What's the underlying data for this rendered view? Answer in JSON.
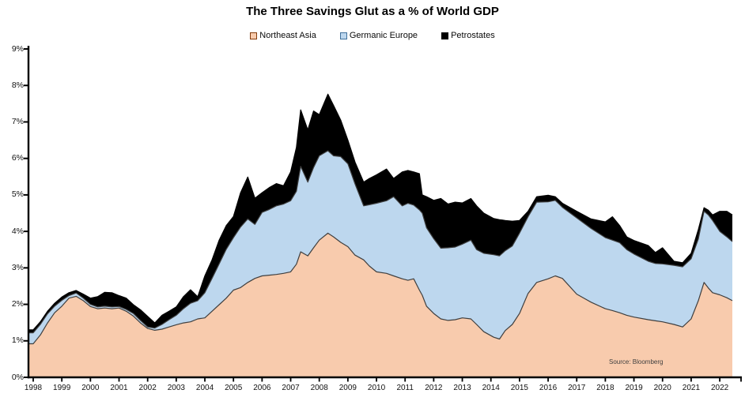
{
  "title": "The Three Savings Glut as a % of World GDP",
  "source_note": "Source: Bloomberg",
  "colors": {
    "background": "#ffffff",
    "axis": "#000000",
    "northeast_asia_fill": "#F8CBAD",
    "northeast_asia_border": "#843C0C",
    "germanic_europe_fill": "#BDD7EE",
    "germanic_europe_border": "#41719C",
    "petrostates_fill": "#000000",
    "area_outline": "#3f3f3f"
  },
  "axes": {
    "y_tick_labels": [
      "0%",
      "1%",
      "2%",
      "3%",
      "4%",
      "5%",
      "6%",
      "7%",
      "8%",
      "9%"
    ],
    "x_tick_years": [
      "1998",
      "1999",
      "2000",
      "2001",
      "2002",
      "2003",
      "2004",
      "2005",
      "2006",
      "2007",
      "2008",
      "2009",
      "2010",
      "2011",
      "2012",
      "2013",
      "2014",
      "2015",
      "2016",
      "2017",
      "2018",
      "2019",
      "2020",
      "2021",
      "2022"
    ]
  },
  "chart_data": {
    "type": "area",
    "stacked": true,
    "title": "The Three Savings Glut as a % of World GDP",
    "xlabel": "",
    "ylabel": "% of World GDP",
    "ylim": [
      0,
      9
    ],
    "xlim": [
      1998,
      2022.5
    ],
    "grid": false,
    "legend_position": "top",
    "x": [
      1998,
      1998.25,
      1998.5,
      1998.75,
      1999,
      1999.25,
      1999.5,
      1999.75,
      2000,
      2000.25,
      2000.5,
      2000.75,
      2001,
      2001.25,
      2001.5,
      2001.75,
      2002,
      2002.25,
      2002.5,
      2002.75,
      2003,
      2003.25,
      2003.5,
      2003.75,
      2004,
      2004.25,
      2004.5,
      2004.75,
      2005,
      2005.25,
      2005.5,
      2005.75,
      2006,
      2006.25,
      2006.5,
      2006.75,
      2007,
      2007.2,
      2007.35,
      2007.6,
      2007.8,
      2008,
      2008.3,
      2008.5,
      2008.75,
      2009,
      2009.25,
      2009.55,
      2009.75,
      2010,
      2010.35,
      2010.6,
      2010.9,
      2011.1,
      2011.3,
      2011.5,
      2011.6,
      2011.75,
      2012,
      2012.25,
      2012.5,
      2012.75,
      2013,
      2013.3,
      2013.5,
      2013.75,
      2014.1,
      2014.3,
      2014.5,
      2014.75,
      2015,
      2015.3,
      2015.6,
      2016,
      2016.25,
      2016.5,
      2017,
      2017.5,
      2018,
      2018.25,
      2018.5,
      2018.75,
      2019,
      2019.5,
      2019.75,
      2020,
      2020.4,
      2020.7,
      2021,
      2021.25,
      2021.45,
      2021.6,
      2021.75,
      2022,
      2022.25,
      2022.44
    ],
    "series": [
      {
        "name": "Northeast Asia",
        "fill": "#F8CBAD",
        "swatch_border": "#843C0C",
        "outline": "#3f3f3f",
        "values": [
          0.92,
          1.16,
          1.49,
          1.77,
          1.95,
          2.17,
          2.22,
          2.1,
          1.94,
          1.88,
          1.9,
          1.88,
          1.9,
          1.81,
          1.68,
          1.49,
          1.34,
          1.29,
          1.32,
          1.38,
          1.44,
          1.49,
          1.52,
          1.6,
          1.63,
          1.81,
          1.99,
          2.17,
          2.39,
          2.46,
          2.6,
          2.71,
          2.78,
          2.8,
          2.82,
          2.85,
          2.89,
          3.1,
          3.44,
          3.33,
          3.55,
          3.76,
          3.95,
          3.85,
          3.7,
          3.58,
          3.35,
          3.22,
          3.05,
          2.89,
          2.85,
          2.78,
          2.7,
          2.66,
          2.7,
          2.39,
          2.25,
          1.95,
          1.75,
          1.6,
          1.56,
          1.58,
          1.63,
          1.6,
          1.45,
          1.25,
          1.1,
          1.05,
          1.28,
          1.45,
          1.75,
          2.3,
          2.6,
          2.7,
          2.78,
          2.71,
          2.28,
          2.06,
          1.88,
          1.83,
          1.77,
          1.7,
          1.65,
          1.58,
          1.55,
          1.52,
          1.45,
          1.38,
          1.6,
          2.1,
          2.6,
          2.45,
          2.32,
          2.26,
          2.18,
          2.1
        ]
      },
      {
        "name": "Germanic Europe",
        "fill": "#BDD7EE",
        "swatch_border": "#41719C",
        "outline": "#3f3f3f",
        "values": [
          0.3,
          0.29,
          0.25,
          0.18,
          0.16,
          0.07,
          0.09,
          0.07,
          0.06,
          0.05,
          0.05,
          0.05,
          0.04,
          0.05,
          0.07,
          0.07,
          0.04,
          0.06,
          0.13,
          0.2,
          0.26,
          0.39,
          0.51,
          0.5,
          0.69,
          0.9,
          1.12,
          1.34,
          1.44,
          1.66,
          1.74,
          1.48,
          1.74,
          1.8,
          1.88,
          1.9,
          1.95,
          2.0,
          2.34,
          2.02,
          2.2,
          2.31,
          2.26,
          2.22,
          2.35,
          2.27,
          1.95,
          1.48,
          1.68,
          1.88,
          1.99,
          2.17,
          2.0,
          2.11,
          2.02,
          2.2,
          2.25,
          2.15,
          2.05,
          1.94,
          1.99,
          1.99,
          2.02,
          2.16,
          2.05,
          2.15,
          2.26,
          2.28,
          2.19,
          2.15,
          2.2,
          2.1,
          2.2,
          2.11,
          2.07,
          1.95,
          2.09,
          2.02,
          1.95,
          1.93,
          1.92,
          1.8,
          1.73,
          1.6,
          1.57,
          1.59,
          1.62,
          1.65,
          1.65,
          1.69,
          1.95,
          2.0,
          1.98,
          1.74,
          1.67,
          1.62
        ]
      },
      {
        "name": "Petrostates",
        "fill": "#000000",
        "swatch_border": "#000000",
        "outline": "#000000",
        "values": [
          0.08,
          0.07,
          0.07,
          0.08,
          0.09,
          0.08,
          0.07,
          0.11,
          0.17,
          0.28,
          0.38,
          0.39,
          0.3,
          0.31,
          0.24,
          0.29,
          0.29,
          0.14,
          0.25,
          0.23,
          0.23,
          0.33,
          0.37,
          0.11,
          0.46,
          0.51,
          0.65,
          0.65,
          0.58,
          0.94,
          1.15,
          0.72,
          0.54,
          0.6,
          0.61,
          0.5,
          0.79,
          1.2,
          1.55,
          1.43,
          1.55,
          1.13,
          1.55,
          1.38,
          1.0,
          0.65,
          0.6,
          0.65,
          0.72,
          0.78,
          0.87,
          0.5,
          0.93,
          0.9,
          0.91,
          0.99,
          0.5,
          0.85,
          1.05,
          1.36,
          1.2,
          1.23,
          1.13,
          1.14,
          1.2,
          1.1,
          0.99,
          0.99,
          0.83,
          0.68,
          0.35,
          0.15,
          0.15,
          0.18,
          0.1,
          0.11,
          0.18,
          0.26,
          0.43,
          0.64,
          0.47,
          0.35,
          0.37,
          0.43,
          0.3,
          0.44,
          0.11,
          0.11,
          0.15,
          0.26,
          0.1,
          0.13,
          0.15,
          0.55,
          0.7,
          0.73
        ]
      }
    ]
  }
}
